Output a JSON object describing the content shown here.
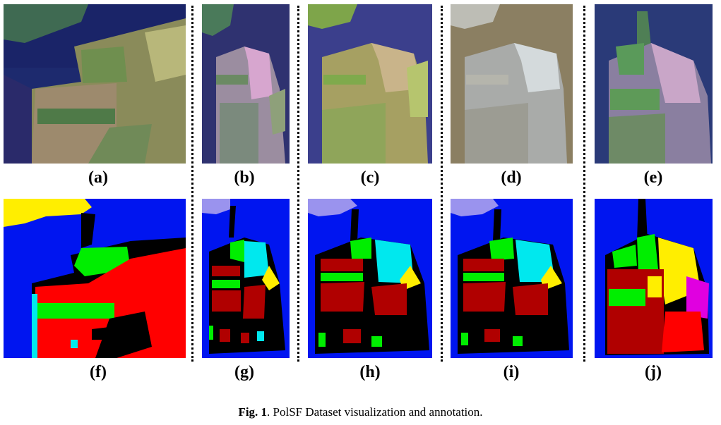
{
  "panel_labels": [
    "(a)",
    "(b)",
    "(c)",
    "(d)",
    "(e)",
    "(f)",
    "(g)",
    "(h)",
    "(i)",
    "(j)"
  ],
  "caption": {
    "prefix": "Fig. 1",
    "text": ". PolSF Dataset visualization and annotation."
  },
  "legend_colors": {
    "water": "#0015f0",
    "vegetation": "#00ee00",
    "high_density_urban": "#b00000",
    "low_density_urban": "#ff0000",
    "developed": "#00e8ee",
    "yellow_class": "#ffee00",
    "lavender_class": "#9a93ee",
    "magenta_class": "#e000e0",
    "unlabeled": "#000000"
  }
}
